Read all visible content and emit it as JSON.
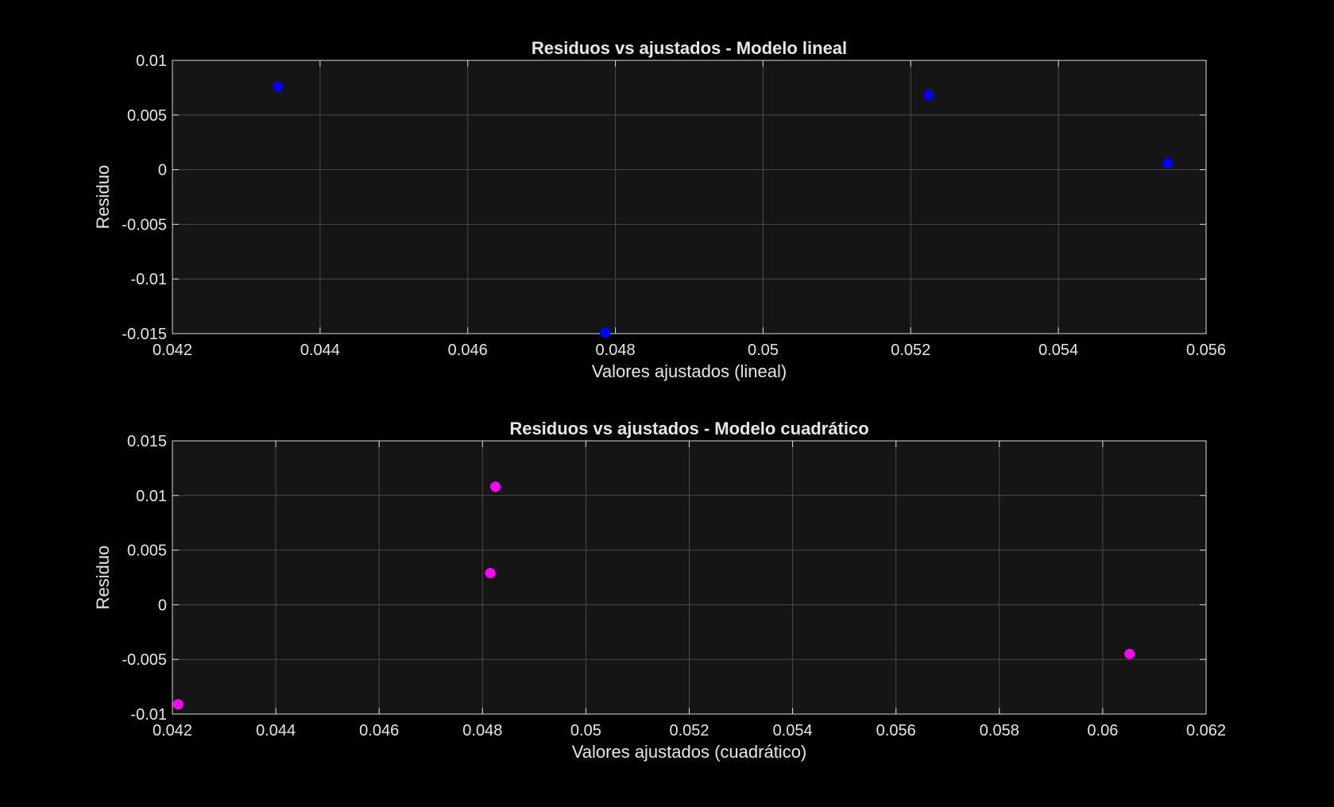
{
  "chart_data": [
    {
      "type": "scatter",
      "title": "Residuos vs ajustados - Modelo lineal",
      "xlabel": "Valores ajustados (lineal)",
      "ylabel": "Residuo",
      "xlim": [
        0.042,
        0.056
      ],
      "ylim": [
        -0.015,
        0.01
      ],
      "xticks": [
        0.042,
        0.044,
        0.046,
        0.048,
        0.05,
        0.052,
        0.054,
        0.056
      ],
      "xtick_labels": [
        "0.042",
        "0.044",
        "0.046",
        "0.048",
        "0.05",
        "0.052",
        "0.054",
        "0.056"
      ],
      "yticks": [
        -0.015,
        -0.01,
        -0.005,
        0,
        0.005,
        0.01
      ],
      "ytick_labels": [
        "-0.015",
        "-0.01",
        "-0.005",
        "0",
        "0.005",
        "0.01"
      ],
      "grid": true,
      "series": [
        {
          "color": "#0000ff",
          "x": [
            0.04343,
            0.04786,
            0.05224,
            0.05548
          ],
          "y": [
            0.0076,
            -0.0149,
            0.0068,
            0.0006
          ]
        }
      ]
    },
    {
      "type": "scatter",
      "title": "Residuos vs ajustados - Modelo cuadrático",
      "xlabel": "Valores ajustados (cuadrático)",
      "ylabel": "Residuo",
      "xlim": [
        0.042,
        0.062
      ],
      "ylim": [
        -0.01,
        0.015
      ],
      "xticks": [
        0.042,
        0.044,
        0.046,
        0.048,
        0.05,
        0.052,
        0.054,
        0.056,
        0.058,
        0.06,
        0.062
      ],
      "xtick_labels": [
        "0.042",
        "0.044",
        "0.046",
        "0.048",
        "0.05",
        "0.052",
        "0.054",
        "0.056",
        "0.058",
        "0.06",
        "0.062"
      ],
      "yticks": [
        -0.01,
        -0.005,
        0,
        0.005,
        0.01,
        0.015
      ],
      "ytick_labels": [
        "-0.01",
        "-0.005",
        "0",
        "0.005",
        "0.01",
        "0.015"
      ],
      "grid": true,
      "series": [
        {
          "color": "#ff00ff",
          "x": [
            0.04211,
            0.04815,
            0.04825,
            0.06052
          ],
          "y": [
            -0.0091,
            0.0029,
            0.0108,
            -0.0045
          ]
        }
      ]
    }
  ],
  "colors": {
    "figure_background": "#000000",
    "axes_background": "#151515",
    "axes_border": "#d9d9d9",
    "grid": "#4a4a4a",
    "text": "#e6e6e6"
  }
}
